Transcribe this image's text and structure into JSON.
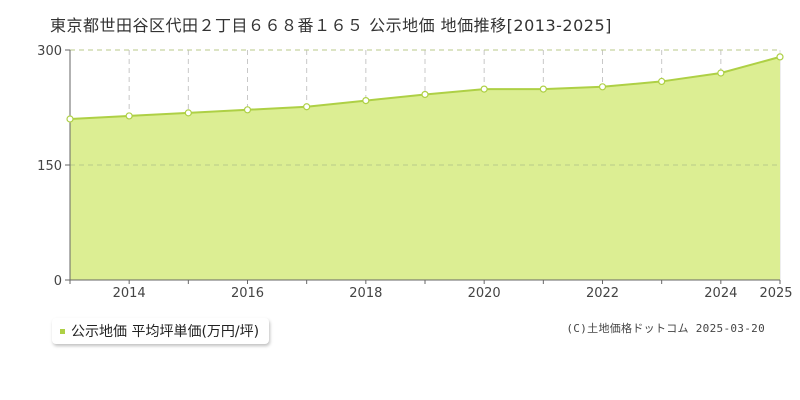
{
  "title": "東京都世田谷区代田２丁目６６８番１６５ 公示地価 地価推移[2013-2025]",
  "legend": {
    "label": "公示地価 平均坪単価(万円/坪)"
  },
  "credit": "(C)土地価格ドットコム 2025-03-20",
  "colors": {
    "fill": "#dcee93",
    "line": "#aed045",
    "grid": "#c8c8c8",
    "axis": "#666666",
    "point_fill": "#ffffff"
  },
  "chart_data": {
    "type": "area",
    "title": "",
    "xlabel": "",
    "ylabel": "",
    "x": [
      2013,
      2014,
      2015,
      2016,
      2017,
      2018,
      2019,
      2020,
      2021,
      2022,
      2023,
      2024,
      2025
    ],
    "series": [
      {
        "name": "公示地価 平均坪単価(万円/坪)",
        "values": [
          210,
          214,
          218,
          222,
          226,
          234,
          242,
          249,
          249,
          252,
          259,
          270,
          291
        ]
      }
    ],
    "xlim": [
      2013,
      2025
    ],
    "ylim": [
      0,
      300
    ],
    "y_ticks": [
      0,
      150,
      300
    ],
    "x_tick_labels": [
      2014,
      2016,
      2018,
      2020,
      2022,
      2024,
      2025
    ],
    "grid": true,
    "legend_position": "bottom-left"
  }
}
